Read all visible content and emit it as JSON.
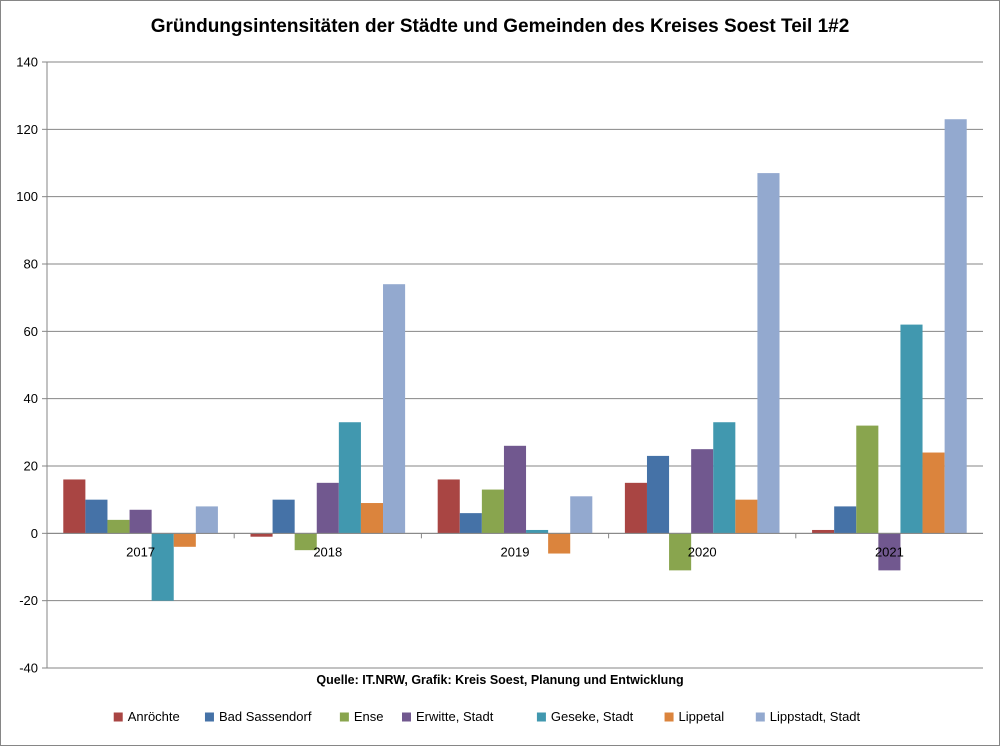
{
  "chart_data": {
    "type": "bar",
    "title": "Gründungsintensitäten der Städte und Gemeinden des Kreises Soest Teil 1#2",
    "source": "Quelle: IT.NRW, Grafik: Kreis Soest, Planung und Entwicklung",
    "xlabel": "",
    "ylabel": "",
    "ylim": [
      -40,
      140
    ],
    "ytick_step": 20,
    "grid": true,
    "legend_position": "bottom",
    "categories": [
      "2017",
      "2018",
      "2019",
      "2020",
      "2021"
    ],
    "series": [
      {
        "name": "Anröchte",
        "color": "#A94543",
        "values": [
          16,
          -1,
          16,
          15,
          1
        ]
      },
      {
        "name": "Bad Sassendorf",
        "color": "#4572A7",
        "values": [
          10,
          10,
          6,
          23,
          8
        ]
      },
      {
        "name": "Ense",
        "color": "#89A54E",
        "values": [
          4,
          -5,
          13,
          -11,
          32
        ]
      },
      {
        "name": "Erwitte, Stadt",
        "color": "#71588F",
        "values": [
          7,
          15,
          26,
          25,
          -11
        ]
      },
      {
        "name": "Geseke, Stadt",
        "color": "#4198AF",
        "values": [
          -20,
          33,
          1,
          33,
          62
        ]
      },
      {
        "name": "Lippetal",
        "color": "#DB843D",
        "values": [
          -4,
          9,
          -6,
          10,
          24
        ]
      },
      {
        "name": "Lippstadt, Stadt",
        "color": "#93A9CF",
        "values": [
          8,
          74,
          11,
          107,
          123
        ]
      }
    ]
  }
}
